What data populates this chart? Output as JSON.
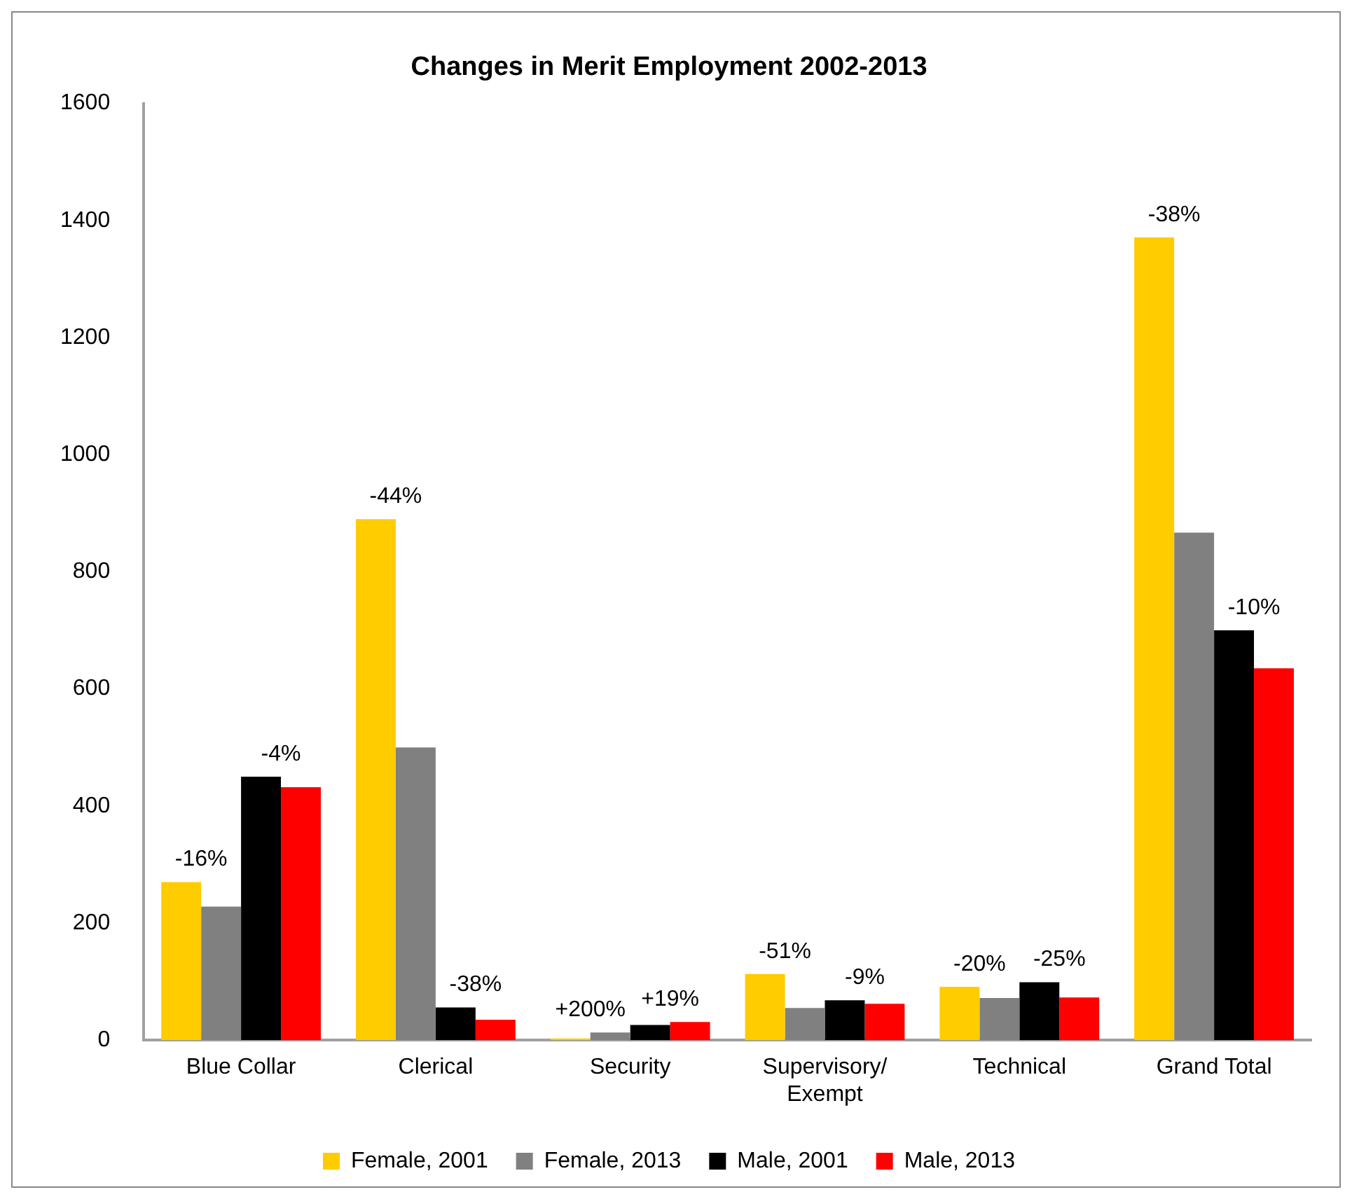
{
  "chart_data": {
    "type": "bar",
    "title": "Changes in Merit Employment 2002-2013",
    "categories": [
      "Blue Collar",
      "Clerical",
      "Security",
      "Supervisory/ Exempt",
      "Technical",
      "Grand Total"
    ],
    "series": [
      {
        "name": "Female, 2001",
        "color": "#ffcc00",
        "values": [
          270,
          890,
          3,
          113,
          91,
          1371
        ]
      },
      {
        "name": "Female, 2013",
        "color": "#808080",
        "values": [
          228,
          500,
          13,
          55,
          72,
          867
        ]
      },
      {
        "name": "Male, 2001",
        "color": "#000000",
        "values": [
          450,
          56,
          26,
          68,
          99,
          700
        ]
      },
      {
        "name": "Male, 2013",
        "color": "#ff0000",
        "values": [
          432,
          35,
          31,
          62,
          73,
          635
        ]
      }
    ],
    "ylim": [
      0,
      1600
    ],
    "yticks": [
      0,
      200,
      400,
      600,
      800,
      1000,
      1200,
      1400,
      1600
    ],
    "grid": false,
    "legend": "bottom",
    "annotations": [
      "-16%",
      "-4%",
      "-44%",
      "-38%",
      "+200%",
      "+19%",
      "-51%",
      "-9%",
      "-20%",
      "-25%",
      "-38%",
      "-10%"
    ]
  }
}
